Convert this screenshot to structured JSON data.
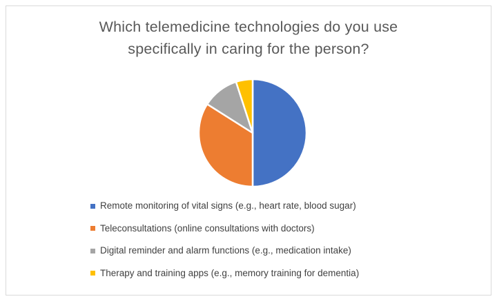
{
  "header": {
    "title_lines": [
      "Which telemedicine technologies do you use",
      "specifically in caring for the person?"
    ],
    "title_color": "#595959"
  },
  "chart_data": {
    "type": "pie",
    "title": "Which telemedicine technologies do you use specifically in caring for the person?",
    "labels": [
      "Remote monitoring of vital signs (e.g., heart rate, blood sugar)",
      "Teleconsultations (online consultations with doctors)",
      "Digital reminder and alarm functions (e.g., medication intake)",
      "Therapy and training apps (e.g., memory training for dementia)"
    ],
    "values": [
      50,
      34,
      11,
      5
    ],
    "value_unit": "percent-of-whole (estimated from slice angles; no data labels shown)",
    "colors": [
      "#4472C4",
      "#ED7D31",
      "#A5A5A5",
      "#FFC000"
    ],
    "start_angle_deg_from_top": 0,
    "direction": "clockwise",
    "slice_border_color": "#FFFFFF",
    "slice_border_width": 2.5,
    "legend_position": "bottom",
    "legend_text_color": "#404040",
    "grid": false
  },
  "frame": {
    "border_color": "#D9D9D9",
    "background": "#FFFFFF"
  }
}
